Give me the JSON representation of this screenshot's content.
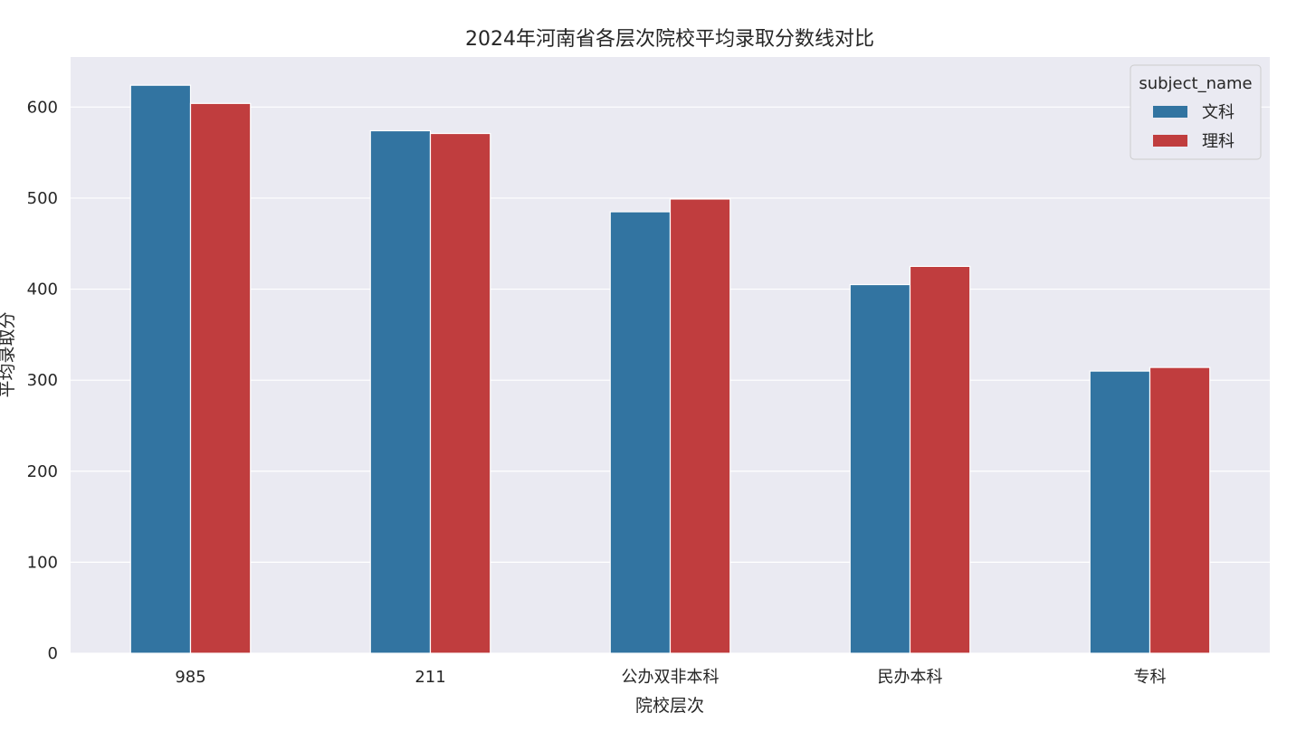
{
  "chart_data": {
    "type": "bar",
    "title": "2024年河南省各层次院校平均录取分数线对比",
    "xlabel": "院校层次",
    "ylabel": "平均录取分",
    "categories": [
      "985",
      "211",
      "公办双非本科",
      "民办本科",
      "专科"
    ],
    "series": [
      {
        "name": "文科",
        "color": "#3274a1",
        "values": [
          624,
          574,
          485,
          405,
          310
        ]
      },
      {
        "name": "理科",
        "color": "#c03d3e",
        "values": [
          604,
          571,
          499,
          425,
          314
        ]
      }
    ],
    "ylim": [
      0,
      655
    ],
    "yticks": [
      0,
      100,
      200,
      300,
      400,
      500,
      600
    ],
    "grid": true,
    "background": "#eaeaf2",
    "legend": {
      "title": "subject_name",
      "placement": "top-right"
    }
  }
}
